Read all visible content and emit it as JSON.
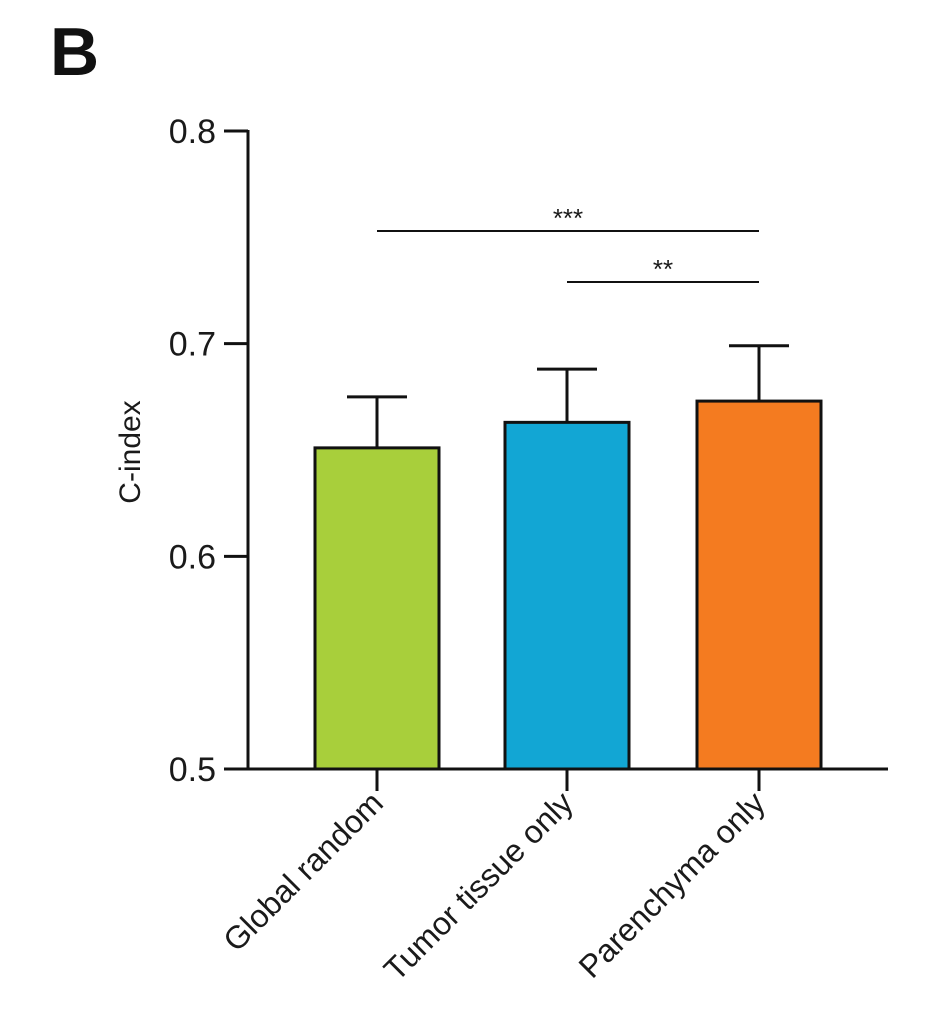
{
  "panel_label": "B",
  "chart_data": {
    "type": "bar",
    "title": "",
    "xlabel": "",
    "ylabel": "C-index",
    "ylim": [
      0.5,
      0.8
    ],
    "yticks": [
      0.5,
      0.6,
      0.7,
      0.8
    ],
    "ytick_labels": [
      "0.5",
      "0.6",
      "0.7",
      "0.8"
    ],
    "categories": [
      "Global random",
      "Tumor tissue only",
      "Parenchyma only"
    ],
    "values": [
      0.651,
      0.663,
      0.673
    ],
    "errors": [
      0.024,
      0.025,
      0.026
    ],
    "colors": [
      "#A8CF3B",
      "#12A6D4",
      "#F47B20"
    ],
    "significance": [
      {
        "from": 0,
        "to": 2,
        "label": "***",
        "y": 0.753
      },
      {
        "from": 1,
        "to": 2,
        "label": "**",
        "y": 0.729
      }
    ]
  }
}
